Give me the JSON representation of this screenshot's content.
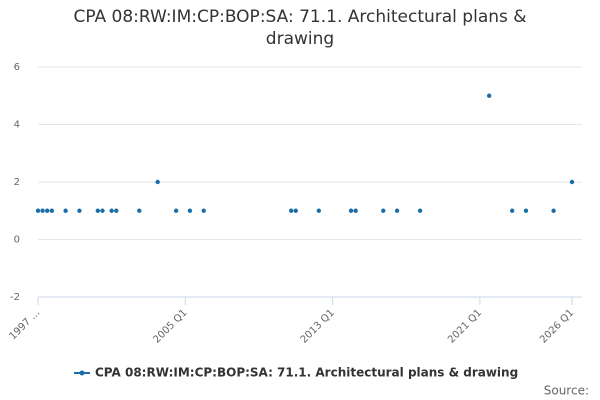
{
  "chart_data": {
    "type": "scatter",
    "title": "CPA 08:RW:IM:CP:BOP:SA: 71.1. Architectural plans & drawing",
    "source": "Source:",
    "series": [
      {
        "name": "CPA 08:RW:IM:CP:BOP:SA: 71.1. Architectural plans & drawing",
        "color": "#1a6ea8",
        "x": [
          1997.0,
          1997.25,
          1997.5,
          1997.75,
          1998.5,
          1999.25,
          2000.25,
          2000.5,
          2001.0,
          2001.25,
          2002.5,
          2003.5,
          2004.5,
          2005.25,
          2006.0,
          2010.75,
          2011.0,
          2012.25,
          2014.0,
          2014.25,
          2015.75,
          2016.5,
          2017.75,
          2021.5,
          2022.75,
          2023.5,
          2025.0,
          2026.0
        ],
        "values": [
          1,
          1,
          1,
          1,
          1,
          1,
          1,
          1,
          1,
          1,
          1,
          2,
          1,
          1,
          1,
          1,
          1,
          1,
          1,
          1,
          1,
          1,
          1,
          5,
          1,
          1,
          1,
          2
        ]
      }
    ],
    "xlim": [
      1997,
      2026
    ],
    "xticks": [
      {
        "value": 1997,
        "label": "1997 ..."
      },
      {
        "value": 2005,
        "label": "2005 Q1"
      },
      {
        "value": 2013,
        "label": "2013 Q1"
      },
      {
        "value": 2021,
        "label": "2021 Q1"
      },
      {
        "value": 2026,
        "label": "2026 Q1"
      }
    ],
    "ylim": [
      -2,
      6
    ],
    "yticks": [
      -2,
      0,
      2,
      4,
      6
    ],
    "grid": true
  }
}
